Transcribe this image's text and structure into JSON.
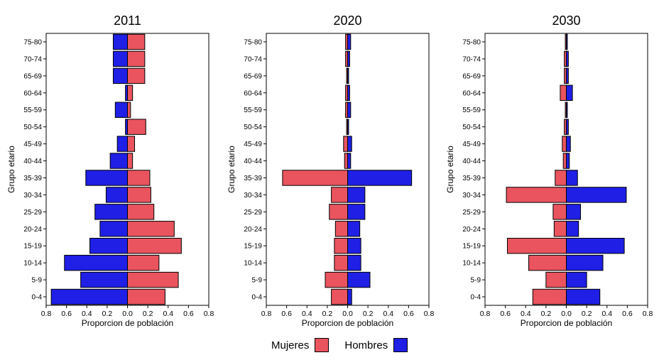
{
  "chart_data": [
    {
      "type": "bar",
      "orientation": "horizontal-population-pyramid",
      "title": "2011",
      "xlabel": "Proporcion de población",
      "ylabel": "Grupo etario",
      "xlim": [
        -0.8,
        0.8
      ],
      "xticks": [
        -0.8,
        -0.6,
        -0.4,
        -0.2,
        0.0,
        0.2,
        0.4,
        0.6,
        0.8
      ],
      "xtick_labels": [
        "0.8",
        "0.6",
        "0.4",
        "0.2",
        "0.0",
        "0.2",
        "0.4",
        "0.6",
        "0.8"
      ],
      "categories": [
        "0-4",
        "5-9",
        "10-14",
        "15-19",
        "20-24",
        "25-29",
        "30-34",
        "35-39",
        "40-44",
        "45-49",
        "50-54",
        "55-59",
        "60-64",
        "65-69",
        "70-74",
        "75-80"
      ],
      "series": [
        {
          "name": "Mujeres",
          "side": "right",
          "values": [
            0.37,
            0.5,
            0.31,
            0.53,
            0.46,
            0.26,
            0.23,
            0.22,
            0.05,
            0.07,
            0.18,
            0.03,
            0.05,
            0.17,
            0.17,
            0.17
          ]
        },
        {
          "name": "Hombres",
          "side": "left",
          "values": [
            0.75,
            0.46,
            0.62,
            0.37,
            0.27,
            0.32,
            0.21,
            0.41,
            0.17,
            0.1,
            0.02,
            0.12,
            0.02,
            0.14,
            0.14,
            0.14
          ]
        }
      ]
    },
    {
      "type": "bar",
      "orientation": "horizontal-population-pyramid",
      "title": "2020",
      "xlabel": "Proporcion de población",
      "ylabel": "Grupo etario",
      "xlim": [
        -0.8,
        0.8
      ],
      "xticks": [
        -0.8,
        -0.6,
        -0.4,
        -0.2,
        0.0,
        0.2,
        0.4,
        0.6,
        0.8
      ],
      "xtick_labels": [
        "0.8",
        "0.6",
        "0.4",
        "0.2",
        "0.0",
        "0.2",
        "0.4",
        "0.6",
        "0.8"
      ],
      "categories": [
        "0-4",
        "5-9",
        "10-14",
        "15-19",
        "20-24",
        "25-29",
        "30-34",
        "35-39",
        "40-44",
        "45-49",
        "50-54",
        "55-59",
        "60-64",
        "65-69",
        "70-74",
        "75-80"
      ],
      "series": [
        {
          "name": "Mujeres",
          "side": "left",
          "values": [
            0.16,
            0.22,
            0.13,
            0.13,
            0.12,
            0.18,
            0.16,
            0.64,
            0.03,
            0.04,
            0.01,
            0.02,
            0.02,
            0.01,
            0.02,
            0.02
          ]
        },
        {
          "name": "Hombres",
          "side": "right",
          "values": [
            0.04,
            0.22,
            0.13,
            0.13,
            0.12,
            0.17,
            0.17,
            0.63,
            0.03,
            0.04,
            0.01,
            0.03,
            0.02,
            0.01,
            0.02,
            0.03
          ]
        }
      ]
    },
    {
      "type": "bar",
      "orientation": "horizontal-population-pyramid",
      "title": "2030",
      "xlabel": "Proporcion de población",
      "ylabel": "Grupo etario",
      "xlim": [
        -0.8,
        0.8
      ],
      "xticks": [
        -0.8,
        -0.6,
        -0.4,
        -0.2,
        0.0,
        0.2,
        0.4,
        0.6,
        0.8
      ],
      "xtick_labels": [
        "0.8",
        "0.6",
        "0.4",
        "0.2",
        "0.0",
        "0.2",
        "0.4",
        "0.6",
        "0.8"
      ],
      "categories": [
        "0-4",
        "5-9",
        "10-14",
        "15-19",
        "20-24",
        "25-29",
        "30-34",
        "35-39",
        "40-44",
        "45-49",
        "50-54",
        "55-59",
        "60-64",
        "65-69",
        "70-74",
        "75-80"
      ],
      "series": [
        {
          "name": "Mujeres",
          "side": "left",
          "values": [
            0.33,
            0.2,
            0.37,
            0.58,
            0.12,
            0.13,
            0.59,
            0.11,
            0.03,
            0.04,
            0.02,
            0.01,
            0.06,
            0.02,
            0.02,
            0.01
          ]
        },
        {
          "name": "Hombres",
          "side": "right",
          "values": [
            0.33,
            0.2,
            0.36,
            0.57,
            0.12,
            0.14,
            0.59,
            0.11,
            0.03,
            0.04,
            0.02,
            0.01,
            0.06,
            0.02,
            0.02,
            0.01
          ]
        }
      ]
    }
  ],
  "legend": {
    "items": [
      {
        "label": "Mujeres",
        "color": "#e9545e"
      },
      {
        "label": "Hombres",
        "color": "#1f1fe6"
      }
    ]
  }
}
